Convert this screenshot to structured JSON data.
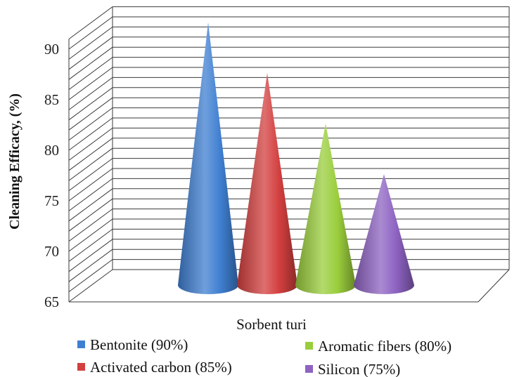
{
  "chart_data": {
    "type": "bar",
    "style": "3d-cone",
    "xlabel": "Sorbent turi",
    "ylabel": "Cleaning Efficacy, (%)",
    "ylim": [
      65,
      90
    ],
    "yticks": [
      65,
      70,
      75,
      80,
      85,
      90
    ],
    "categories": [
      "Bentonite (90%)",
      "Activated carbon (85%)",
      "Aromatic fibers (80%)",
      "Silicon (75%)"
    ],
    "series": [
      {
        "name": "Bentonite (90%)",
        "value": 90,
        "color": "#3f7fd1"
      },
      {
        "name": "Activated carbon (85%)",
        "value": 85,
        "color": "#d33f3f"
      },
      {
        "name": "Aromatic fibers (80%)",
        "value": 80,
        "color": "#9acd3c"
      },
      {
        "name": "Silicon (75%)",
        "value": 75,
        "color": "#8e63c2"
      }
    ],
    "grid": true,
    "legend": "bottom"
  }
}
